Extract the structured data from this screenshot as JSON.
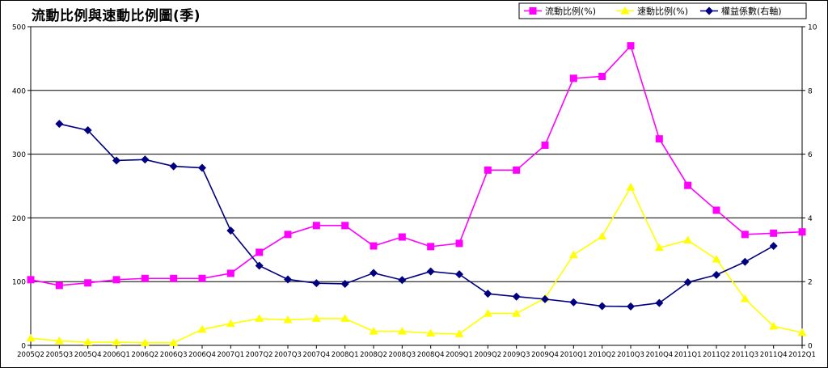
{
  "chart_data": {
    "type": "line",
    "title": "流動比例與速動比例圖(季)",
    "categories": [
      "2005Q2",
      "2005Q3",
      "2005Q4",
      "2006Q1",
      "2006Q2",
      "2006Q3",
      "2006Q4",
      "2007Q1",
      "2007Q2",
      "2007Q3",
      "2007Q4",
      "2008Q1",
      "2008Q2",
      "2008Q3",
      "2008Q4",
      "2009Q1",
      "2009Q2",
      "2009Q3",
      "2009Q4",
      "2010Q1",
      "2010Q2",
      "2010Q3",
      "2010Q4",
      "2011Q1",
      "2011Q2",
      "2011Q3",
      "2011Q4",
      "2012Q1"
    ],
    "ylim": [
      0,
      500
    ],
    "y_ticks": [
      0,
      100,
      200,
      300,
      400,
      500
    ],
    "y2lim": [
      0,
      10
    ],
    "y2_ticks": [
      0,
      2,
      4,
      6,
      8,
      10
    ],
    "grid": true,
    "legend_position": "top-right",
    "series": [
      {
        "name": "流動比例(%)",
        "axis": "left",
        "color": "#ff00ff",
        "marker": "square",
        "values": [
          103,
          94,
          98,
          103,
          105,
          105,
          105,
          113,
          146,
          174,
          188,
          188,
          156,
          170,
          155,
          160,
          275,
          275,
          314,
          419,
          422,
          470,
          324,
          251,
          212,
          174,
          176,
          178
        ]
      },
      {
        "name": "速動比例(%)",
        "axis": "left",
        "color": "#ffff00",
        "marker": "triangle",
        "values": [
          11,
          7,
          5,
          5,
          4,
          4,
          25,
          34,
          42,
          40,
          42,
          42,
          22,
          22,
          19,
          18,
          50,
          50,
          74,
          142,
          171,
          248,
          153,
          165,
          135,
          73,
          30,
          20
        ]
      },
      {
        "name": "權益係數(右軸)",
        "axis": "right",
        "color": "#000080",
        "marker": "diamond",
        "values": [
          null,
          6.95,
          6.75,
          5.8,
          5.83,
          5.62,
          5.57,
          3.6,
          2.5,
          2.07,
          1.95,
          1.93,
          2.27,
          2.05,
          2.32,
          2.23,
          1.62,
          1.53,
          1.45,
          1.35,
          1.23,
          1.22,
          1.33,
          1.98,
          2.21,
          2.62,
          3.12,
          null
        ]
      }
    ]
  }
}
